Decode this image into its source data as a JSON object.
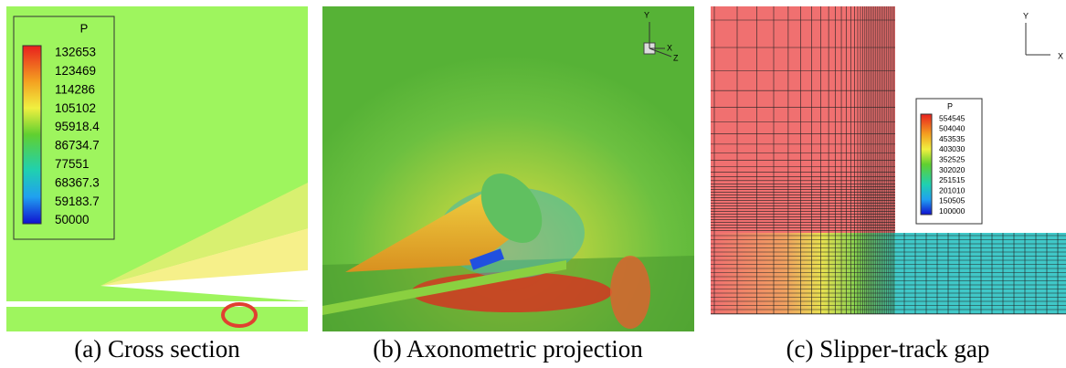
{
  "panels": [
    {
      "caption": "(a) Cross section",
      "legend": {
        "title": "P",
        "levels": [
          "132653",
          "123469",
          "114286",
          "105102",
          "95918.4",
          "86734.7",
          "77551",
          "68367.3",
          "59183.7",
          "50000"
        ]
      }
    },
    {
      "caption": "(b) Axonometric projection",
      "axes": [
        "Y",
        "X",
        "Z"
      ]
    },
    {
      "caption": "(c) Slipper-track gap",
      "legend": {
        "title": "P",
        "levels": [
          "554545",
          "504040",
          "453535",
          "403030",
          "352525",
          "302020",
          "251515",
          "201010",
          "150505",
          "100000"
        ]
      },
      "axes": [
        "Y",
        "X"
      ]
    }
  ]
}
